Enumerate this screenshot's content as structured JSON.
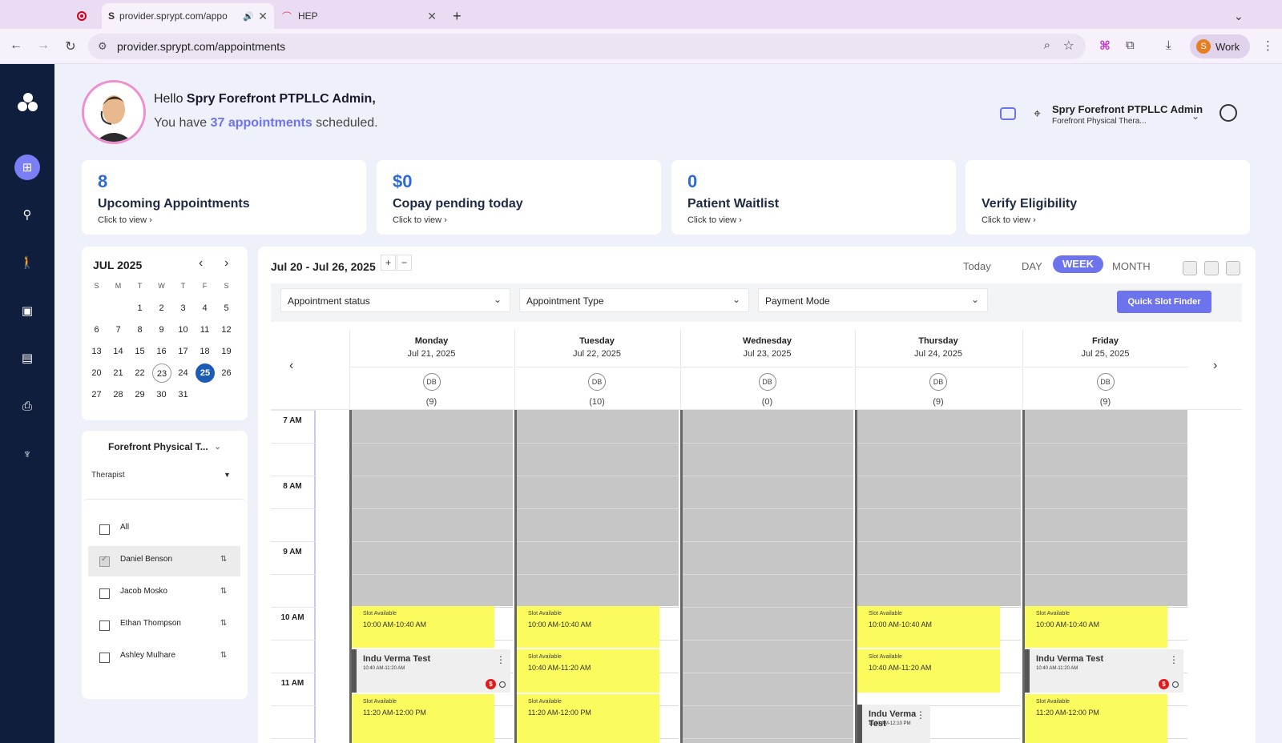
{
  "browser": {
    "tabs": [
      {
        "title": "provider.sprypt.com/appo",
        "active": true
      },
      {
        "title": "HEP",
        "active": false
      }
    ],
    "url": "provider.sprypt.com/appointments",
    "profile_initial": "S",
    "profile_label": "Work"
  },
  "header": {
    "greeting_prefix": "Hello ",
    "user_name": "Spry Forefront PTPLLC Admin,",
    "sched_prefix": "You have ",
    "appointments_link": "37 appointments",
    "sched_suffix": " scheduled.",
    "clinic_name": "Spry Forefront PTPLLC Admin",
    "clinic_sub": "Forefront Physical Thera..."
  },
  "stats": [
    {
      "value": "8",
      "label": "Upcoming Appointments",
      "cta": "Click to view ›"
    },
    {
      "value": "$0",
      "label": "Copay pending today",
      "cta": "Click to view ›"
    },
    {
      "value": "0",
      "label": "Patient Waitlist",
      "cta": "Click to view ›"
    },
    {
      "value": "",
      "label": "Verify Eligibility",
      "cta": "Click to view ›"
    }
  ],
  "mini_calendar": {
    "title": "JUL 2025",
    "dow": [
      "S",
      "M",
      "T",
      "W",
      "T",
      "F",
      "S"
    ],
    "today": "23",
    "selected": "25",
    "weeks": [
      [
        "",
        "",
        "1",
        "2",
        "3",
        "4",
        "5"
      ],
      [
        "6",
        "7",
        "8",
        "9",
        "10",
        "11",
        "12"
      ],
      [
        "13",
        "14",
        "15",
        "16",
        "17",
        "18",
        "19"
      ],
      [
        "20",
        "21",
        "22",
        "23",
        "24",
        "25",
        "26"
      ],
      [
        "27",
        "28",
        "29",
        "30",
        "31",
        "",
        ""
      ]
    ]
  },
  "therapist_panel": {
    "clinic": "Forefront Physical T...",
    "therapist_label": "Therapist",
    "items": [
      {
        "name": "All",
        "checked": false,
        "sortable": false
      },
      {
        "name": "Daniel Benson",
        "checked": true,
        "sortable": true
      },
      {
        "name": "Jacob Mosko",
        "checked": false,
        "sortable": true
      },
      {
        "name": "Ethan Thompson",
        "checked": false,
        "sortable": true
      },
      {
        "name": "Ashley Mulhare",
        "checked": false,
        "sortable": true
      }
    ]
  },
  "schedule": {
    "range": "Jul 20 - Jul 26, 2025",
    "views": {
      "today": "Today",
      "day": "DAY",
      "week": "WEEK",
      "month": "MONTH"
    },
    "active_view": "WEEK",
    "filters": [
      "Appointment status",
      "Appointment Type",
      "Payment Mode"
    ],
    "quick_slot": "Quick Slot Finder",
    "time_labels": [
      "7 AM",
      "8 AM",
      "9 AM",
      "10 AM",
      "11 AM"
    ],
    "days": [
      {
        "name": "Monday",
        "date": "Jul 21, 2025",
        "badge": "DB",
        "count": "(9)"
      },
      {
        "name": "Tuesday",
        "date": "Jul 22, 2025",
        "badge": "DB",
        "count": "(10)"
      },
      {
        "name": "Wednesday",
        "date": "Jul 23, 2025",
        "badge": "DB",
        "count": "(0)"
      },
      {
        "name": "Thursday",
        "date": "Jul 24, 2025",
        "badge": "DB",
        "count": "(9)"
      },
      {
        "name": "Friday",
        "date": "Jul 25, 2025",
        "badge": "DB",
        "count": "(9)"
      }
    ],
    "slot_label": "Slot Available",
    "slot_times": [
      "10:00 AM-10:40 AM",
      "10:40 AM-11:20 AM",
      "11:20 AM-12:00 PM"
    ],
    "appointment_name": "Indu Verma Test",
    "appointment_time_a": "10:40 AM-11:20 AM",
    "appointment_time_b": "11:30 AM-12:10 PM",
    "dollar_symbol": "$"
  }
}
